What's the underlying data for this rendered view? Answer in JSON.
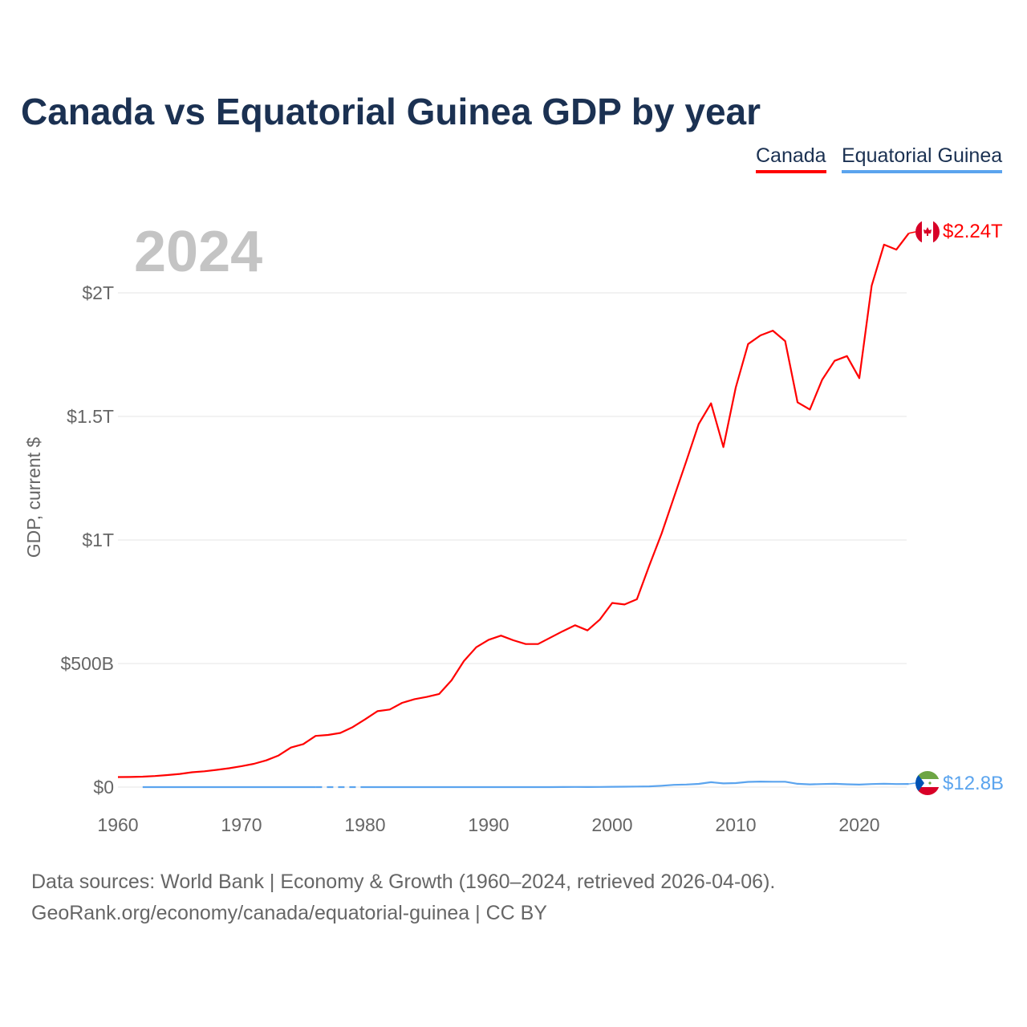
{
  "title": "Canada vs Equatorial Guinea GDP by year",
  "legend": [
    "Canada",
    "Equatorial Guinea"
  ],
  "footer": {
    "line1": "Data sources: World Bank | Economy & Growth (1960–2024, retrieved 2026-04-06).",
    "line2": "GeoRank.org/economy/canada/equatorial-guinea | CC BY"
  },
  "chart_data": {
    "type": "line",
    "title": "Canada vs Equatorial Guinea GDP by year",
    "year_label": "2024",
    "xlabel": "",
    "ylabel": "GDP, current $",
    "xlim": [
      1960,
      2024
    ],
    "ylim": [
      0,
      2300
    ],
    "y_unit": "billions USD",
    "x_ticks": [
      1960,
      1970,
      1980,
      1990,
      2000,
      2010,
      2020
    ],
    "x_tick_labels": [
      "1960",
      "1970",
      "1980",
      "1990",
      "2000",
      "2010",
      "2020"
    ],
    "y_ticks": [
      0,
      500,
      1000,
      1500,
      2000
    ],
    "y_tick_labels": [
      "$0",
      "$500B",
      "$1T",
      "$1.5T",
      "$2T"
    ],
    "grid": true,
    "legend_position": "top-right",
    "x": [
      1960,
      1961,
      1962,
      1963,
      1964,
      1965,
      1966,
      1967,
      1968,
      1969,
      1970,
      1971,
      1972,
      1973,
      1974,
      1975,
      1976,
      1977,
      1978,
      1979,
      1980,
      1981,
      1982,
      1983,
      1984,
      1985,
      1986,
      1987,
      1988,
      1989,
      1990,
      1991,
      1992,
      1993,
      1994,
      1995,
      1996,
      1997,
      1998,
      1999,
      2000,
      2001,
      2002,
      2003,
      2004,
      2005,
      2006,
      2007,
      2008,
      2009,
      2010,
      2011,
      2012,
      2013,
      2014,
      2015,
      2016,
      2017,
      2018,
      2019,
      2020,
      2021,
      2022,
      2023,
      2024
    ],
    "series": [
      {
        "name": "Canada",
        "color": "#ff0000",
        "end_label": "$2.24T",
        "values": [
          40.5,
          40.9,
          42.2,
          44.8,
          48.7,
          53.2,
          60.0,
          64.0,
          69.7,
          76.4,
          84.6,
          94.2,
          108,
          128,
          160,
          174,
          207,
          211,
          219,
          243,
          274,
          307,
          314,
          341,
          356,
          365,
          377,
          432,
          510,
          566,
          596,
          613,
          594,
          579,
          579,
          605,
          631,
          655,
          634,
          678,
          745,
          739,
          760,
          896,
          1026,
          1173,
          1319,
          1469,
          1553,
          1376,
          1617,
          1793,
          1828,
          1847,
          1805,
          1557,
          1528,
          1649,
          1725,
          1744,
          1655,
          2029,
          2195,
          2175,
          2241
        ]
      },
      {
        "name": "Equatorial Guinea",
        "color": "#5ba4ee",
        "end_label": "$12.8B",
        "values": [
          null,
          null,
          0.03,
          0.03,
          0.03,
          0.04,
          0.04,
          0.05,
          0.05,
          0.06,
          0.06,
          0.07,
          0.08,
          0.09,
          0.1,
          0.11,
          0.11,
          null,
          null,
          null,
          0.1,
          0.1,
          0.1,
          0.1,
          0.1,
          0.1,
          0.1,
          0.1,
          0.1,
          0.1,
          0.13,
          0.13,
          0.15,
          0.15,
          0.13,
          0.16,
          0.28,
          0.5,
          0.4,
          0.6,
          1.2,
          1.7,
          2.2,
          3.0,
          5.4,
          9.0,
          10.3,
          13.1,
          19.7,
          15.0,
          16.3,
          21.0,
          22.4,
          21.9,
          21.7,
          13.2,
          11.2,
          12.3,
          13.2,
          11.4,
          10.1,
          12.3,
          13.6,
          12.2,
          12.8
        ]
      }
    ]
  }
}
